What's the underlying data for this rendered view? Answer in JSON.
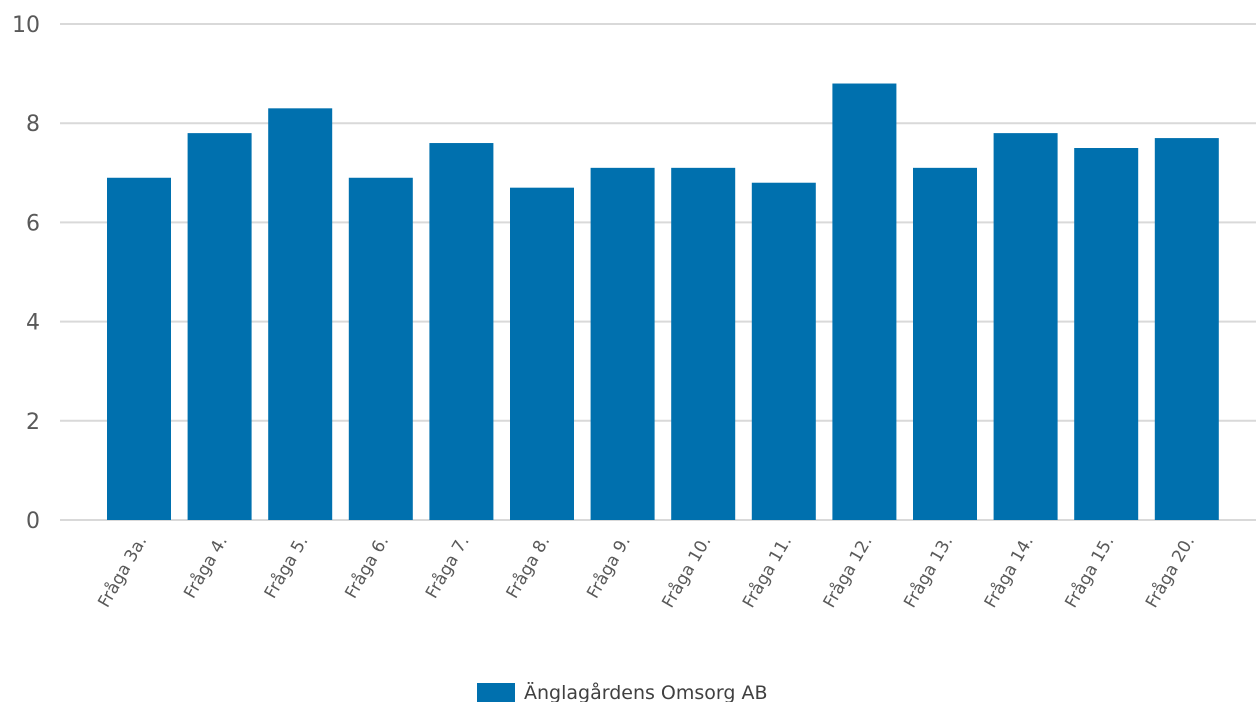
{
  "chart_data": {
    "type": "bar",
    "categories": [
      "Fråga 3a.",
      "Fråga 4.",
      "Fråga 5.",
      "Fråga 6.",
      "Fråga 7.",
      "Fråga 8.",
      "Fråga 9.",
      "Fråga 10.",
      "Fråga 11.",
      "Fråga 12.",
      "Fråga 13.",
      "Fråga 14.",
      "Fråga 15.",
      "Fråga 20."
    ],
    "series": [
      {
        "name": "Änglagårdens Omsorg AB",
        "color": "#0070ae",
        "values": [
          6.9,
          7.8,
          8.3,
          6.9,
          7.6,
          6.7,
          7.1,
          7.1,
          6.8,
          8.8,
          7.1,
          7.8,
          7.5,
          7.7
        ]
      }
    ],
    "yticks": [
      "0",
      "2",
      "4",
      "6",
      "8",
      "10"
    ],
    "ylim": [
      0,
      10
    ],
    "grid": true,
    "legend_position": "bottom-center"
  }
}
